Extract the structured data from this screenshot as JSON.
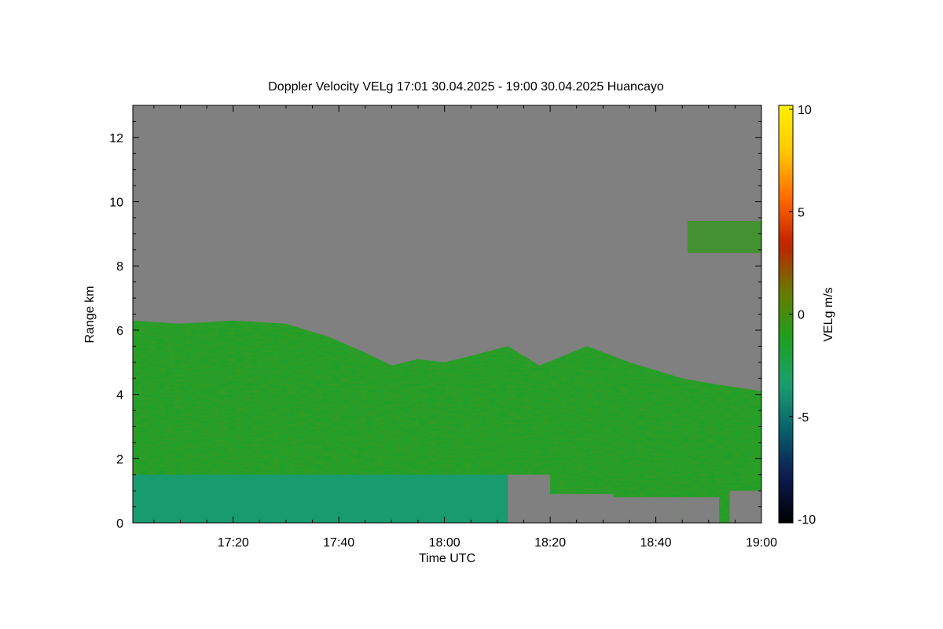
{
  "chart_data": {
    "type": "heatmap",
    "title": "Doppler Velocity VELg   17:01 30.04.2025 - 19:00 30.04.2025 Huancayo",
    "xlabel": "Time UTC",
    "ylabel": "Range km",
    "colorbar_label": "VELg m/s",
    "x_tick_labels": [
      "17:20",
      "17:40",
      "18:00",
      "18:20",
      "18:40",
      "19:00"
    ],
    "x_range": [
      "17:01",
      "19:00"
    ],
    "y_ticks": [
      0,
      2,
      4,
      6,
      8,
      10,
      12
    ],
    "y_range": [
      0,
      13
    ],
    "colorbar_ticks": [
      10,
      5,
      0,
      -5,
      -10
    ],
    "color_range": [
      -10,
      10
    ],
    "colormap": [
      "#000000",
      "#0d1a52",
      "#08606a",
      "#1aa070",
      "#1ea01e",
      "#6a7a00",
      "#c02000",
      "#ff6a00",
      "#ffc800",
      "#fff000"
    ],
    "no_data_color": "#808080",
    "cloud_top_km": [
      [
        "17:01",
        6.3
      ],
      [
        "17:10",
        6.2
      ],
      [
        "17:20",
        6.3
      ],
      [
        "17:30",
        6.2
      ],
      [
        "17:38",
        5.8
      ],
      [
        "17:45",
        5.3
      ],
      [
        "17:50",
        4.9
      ],
      [
        "17:55",
        5.1
      ],
      [
        "18:00",
        5.0
      ],
      [
        "18:05",
        5.2
      ],
      [
        "18:12",
        5.5
      ],
      [
        "18:18",
        4.9
      ],
      [
        "18:27",
        5.5
      ],
      [
        "18:35",
        5.0
      ],
      [
        "18:45",
        4.5
      ],
      [
        "18:52",
        4.3
      ],
      [
        "19:00",
        4.1
      ]
    ],
    "near_surface_no_data": [
      [
        "18:12",
        "18:20",
        1.5
      ],
      [
        "18:20",
        "18:32",
        0.9
      ],
      [
        "18:32",
        "18:45",
        0.8
      ],
      [
        "18:45",
        "18:52",
        0.8
      ],
      [
        "18:54",
        "19:00",
        1.0
      ]
    ],
    "lower_layer_velocity": [
      [
        "17:01",
        "18:12",
        1.5,
        -3.5
      ]
    ],
    "main_layer_velocity": -1.5,
    "upper_patches": [
      [
        "18:46",
        "19:00",
        8.4,
        9.4,
        -0.6
      ]
    ]
  }
}
